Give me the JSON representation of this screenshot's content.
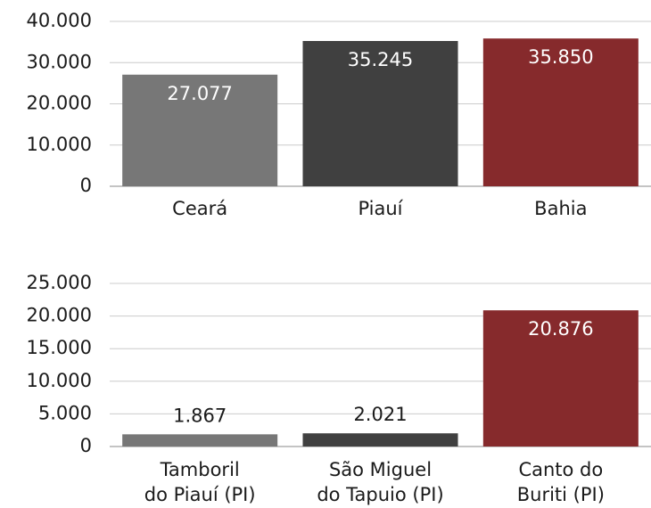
{
  "chart_data": [
    {
      "type": "bar",
      "categories": [
        "Ceará",
        "Piauí",
        "Bahia"
      ],
      "values": [
        27077,
        35245,
        35850
      ],
      "value_labels": [
        "27.077",
        "35.245",
        "35.850"
      ],
      "colors": [
        "#777777",
        "#404040",
        "#862a2c"
      ],
      "ylim": [
        0,
        40000
      ],
      "yticks": [
        0,
        {
          "value": 10000,
          "label": "10.000"
        },
        {
          "value": 20000,
          "label": "20.000"
        },
        {
          "value": 30000,
          "label": "30.000"
        },
        {
          "value": 40000,
          "label": "40.000"
        }
      ],
      "grid": true
    },
    {
      "type": "bar",
      "categories": [
        "Tamboril\ndo Piauí (PI)",
        "São Miguel\ndo Tapuio (PI)",
        "Canto do\nBuriti (PI)"
      ],
      "values": [
        1867,
        2021,
        20876
      ],
      "value_labels": [
        "1.867",
        "2.021",
        "20.876"
      ],
      "colors": [
        "#777777",
        "#404040",
        "#862a2c"
      ],
      "ylim": [
        0,
        25000
      ],
      "yticks": [
        0,
        {
          "value": 5000,
          "label": "5.000"
        },
        {
          "value": 10000,
          "label": "10.000"
        },
        {
          "value": 15000,
          "label": "15.000"
        },
        {
          "value": 20000,
          "label": "20.000"
        },
        {
          "value": 25000,
          "label": "25.000"
        }
      ],
      "grid": true
    }
  ]
}
